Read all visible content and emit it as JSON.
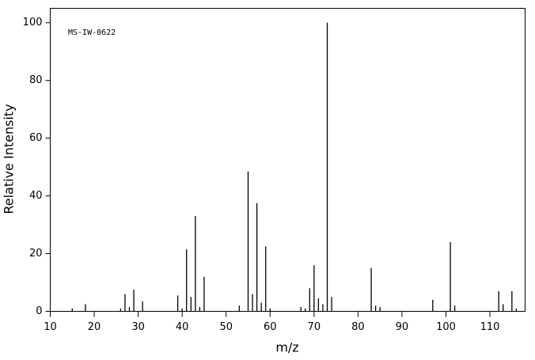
{
  "chart_data": {
    "type": "stick",
    "annotation": "MS-IW-0622",
    "xlabel": "m/z",
    "ylabel": "Relative Intensity",
    "x": [
      15,
      18,
      26,
      27,
      28,
      29,
      31,
      39,
      40,
      41,
      42,
      43,
      44,
      45,
      53,
      55,
      56,
      57,
      58,
      59,
      60,
      67,
      68,
      69,
      70,
      71,
      72,
      73,
      74,
      83,
      84,
      85,
      97,
      101,
      102,
      112,
      113,
      115,
      116
    ],
    "values": [
      1,
      2.5,
      1,
      6,
      1.5,
      7.5,
      3.5,
      5.5,
      1,
      21.5,
      5,
      33,
      1.5,
      12,
      2,
      48.5,
      6,
      37.5,
      3,
      22.5,
      1,
      1.5,
      1,
      8,
      16,
      4.5,
      2.5,
      100,
      5,
      15,
      2,
      1.5,
      4,
      24,
      2,
      7,
      2.5,
      7,
      1
    ],
    "color": "#000000",
    "xlim": [
      10,
      118
    ],
    "xticks": [
      10,
      20,
      30,
      40,
      50,
      60,
      70,
      80,
      90,
      100,
      110
    ],
    "ylim": [
      0,
      105
    ],
    "yticks": [
      0,
      20,
      40,
      60,
      80,
      100
    ]
  }
}
